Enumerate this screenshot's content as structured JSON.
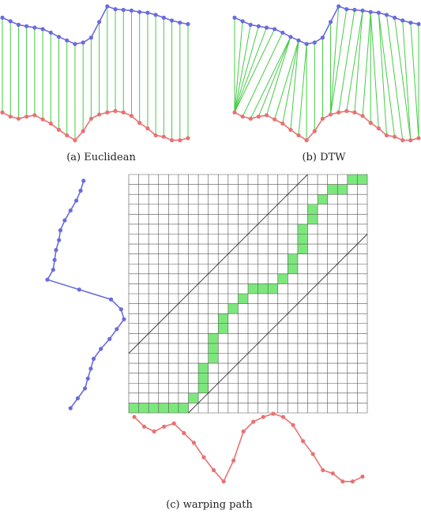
{
  "captions": {
    "a": "(a) Euclidean",
    "b": "(b) DTW",
    "c": "(c) warping path"
  },
  "colors": {
    "blue_series": "#6b6bdc",
    "red_series": "#e87272",
    "link": "#44cc44",
    "path_cell": "#7ce87c",
    "grid": "#555555",
    "band": "#333333"
  },
  "figure": {
    "series_a": [
      0.84,
      0.79,
      0.74,
      0.72,
      0.7,
      0.68,
      0.63,
      0.57,
      0.52,
      0.47,
      0.49,
      0.56,
      0.78,
      1.0,
      0.96,
      0.95,
      0.94,
      0.92,
      0.91,
      0.88,
      0.84,
      0.8,
      0.77,
      0.75
    ],
    "series_b": [
      0.45,
      0.39,
      0.36,
      0.39,
      0.41,
      0.35,
      0.29,
      0.2,
      0.12,
      0.05,
      0.18,
      0.36,
      0.42,
      0.45,
      0.47,
      0.45,
      0.4,
      0.3,
      0.22,
      0.12,
      0.1,
      0.05,
      0.05,
      0.08
    ],
    "grid_size": 24,
    "band_width": 6,
    "warping_path": [
      [
        0,
        0
      ],
      [
        1,
        0
      ],
      [
        2,
        0
      ],
      [
        3,
        0
      ],
      [
        4,
        0
      ],
      [
        5,
        0
      ],
      [
        6,
        1
      ],
      [
        7,
        2
      ],
      [
        7,
        3
      ],
      [
        7,
        4
      ],
      [
        8,
        5
      ],
      [
        8,
        6
      ],
      [
        8,
        7
      ],
      [
        9,
        8
      ],
      [
        9,
        9
      ],
      [
        10,
        10
      ],
      [
        11,
        11
      ],
      [
        12,
        12
      ],
      [
        13,
        12
      ],
      [
        14,
        12
      ],
      [
        15,
        13
      ],
      [
        16,
        14
      ],
      [
        16,
        15
      ],
      [
        17,
        16
      ],
      [
        17,
        17
      ],
      [
        17,
        18
      ],
      [
        18,
        19
      ],
      [
        18,
        20
      ],
      [
        19,
        21
      ],
      [
        20,
        22
      ],
      [
        21,
        22
      ],
      [
        22,
        23
      ],
      [
        23,
        23
      ]
    ]
  }
}
